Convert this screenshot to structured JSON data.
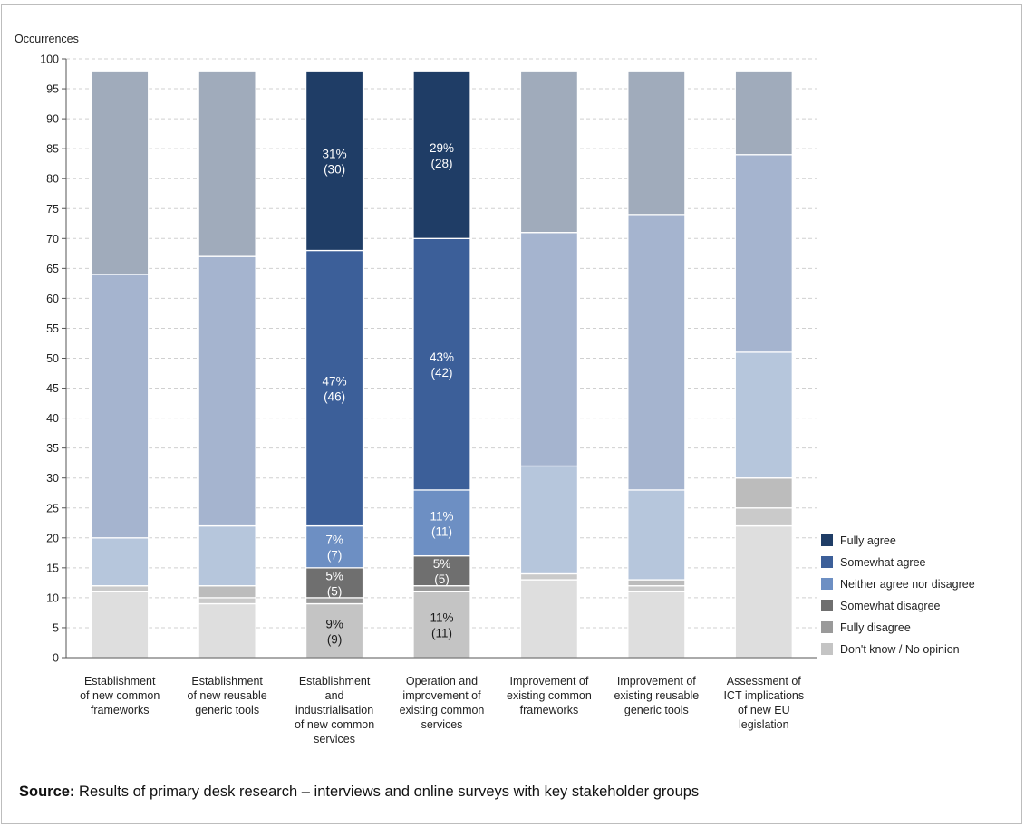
{
  "chart_data": {
    "type": "bar",
    "stacked": true,
    "ylabel": "Occurrences",
    "ylim": [
      0,
      100
    ],
    "yticks": [
      0,
      5,
      10,
      15,
      20,
      25,
      30,
      35,
      40,
      45,
      50,
      55,
      60,
      65,
      70,
      75,
      80,
      85,
      90,
      95,
      100
    ],
    "grid": true,
    "legend_position": "right",
    "categories": [
      [
        "Establishment",
        "of new common",
        "frameworks"
      ],
      [
        "Establishment",
        "of new reusable",
        "generic tools"
      ],
      [
        "Establishment",
        "and",
        "industrialisation",
        "of new common",
        "services"
      ],
      [
        "Operation and",
        "improvement of",
        "existing common",
        "services"
      ],
      [
        "Improvement of",
        "existing common",
        "frameworks"
      ],
      [
        "Improvement of",
        "existing reusable",
        "generic tools"
      ],
      [
        "Assessment of",
        "ICT implications",
        "of new EU",
        "legislation"
      ]
    ],
    "highlighted_categories": [
      2,
      3
    ],
    "series": [
      {
        "name": "Don't know / No opinion",
        "values": [
          11,
          9,
          9,
          11,
          13,
          11,
          22
        ],
        "color": "#c4c4c4",
        "muted_color": "#dedede"
      },
      {
        "name": "Fully disagree",
        "values": [
          1,
          1,
          1,
          1,
          1,
          1,
          3
        ],
        "color": "#9a9a9a",
        "muted_color": "#cacaca"
      },
      {
        "name": "Somewhat disagree",
        "values": [
          0,
          2,
          5,
          5,
          0,
          1,
          5
        ],
        "color": "#6f6f6f",
        "muted_color": "#bcbcbc"
      },
      {
        "name": "Neither agree nor disagree",
        "values": [
          8,
          10,
          7,
          11,
          18,
          15,
          21
        ],
        "color": "#6d8fc3",
        "muted_color": "#b6c6dc"
      },
      {
        "name": "Somewhat agree",
        "values": [
          44,
          45,
          46,
          42,
          39,
          46,
          33
        ],
        "color": "#3c5f99",
        "muted_color": "#a5b4cf"
      },
      {
        "name": "Fully agree",
        "values": [
          34,
          31,
          30,
          28,
          27,
          24,
          14
        ],
        "color": "#1f3d66",
        "muted_color": "#a0abbb"
      }
    ],
    "data_labels": [
      {
        "category": 2,
        "series": "Don't know / No opinion",
        "pct": "9%",
        "count": "(9)",
        "dark_text": true
      },
      {
        "category": 2,
        "series": "Somewhat disagree",
        "pct": "5%",
        "count": "(5)"
      },
      {
        "category": 2,
        "series": "Neither agree nor disagree",
        "pct": "7%",
        "count": "(7)"
      },
      {
        "category": 2,
        "series": "Somewhat agree",
        "pct": "47%",
        "count": "(46)"
      },
      {
        "category": 2,
        "series": "Fully agree",
        "pct": "31%",
        "count": "(30)"
      },
      {
        "category": 3,
        "series": "Don't know / No opinion",
        "pct": "11%",
        "count": "(11)",
        "dark_text": true
      },
      {
        "category": 3,
        "series": "Somewhat disagree",
        "pct": "5%",
        "count": "(5)"
      },
      {
        "category": 3,
        "series": "Neither agree nor disagree",
        "pct": "11%",
        "count": "(11)"
      },
      {
        "category": 3,
        "series": "Somewhat agree",
        "pct": "43%",
        "count": "(42)"
      },
      {
        "category": 3,
        "series": "Fully agree",
        "pct": "29%",
        "count": "(28)"
      }
    ]
  },
  "source": {
    "label": "Source:",
    "text": " Results of primary desk research – interviews and online surveys with key stakeholder groups"
  }
}
